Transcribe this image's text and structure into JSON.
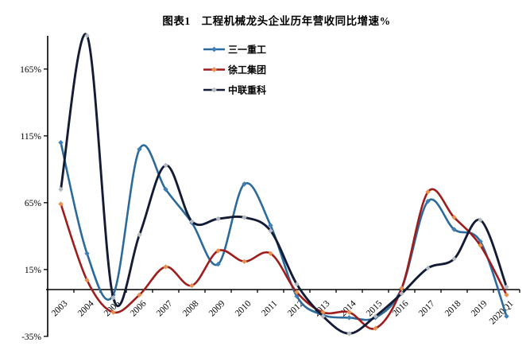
{
  "title": "图表1　工程机械龙头企业历年营收同比增速%",
  "chart_data": {
    "type": "line",
    "title": "图表1　工程机械龙头企业历年营收同比增速%",
    "subtitle": "",
    "xlabel": "",
    "ylabel": "",
    "grid": false,
    "smooth_lines": true,
    "legend_position": "top-center",
    "x_categories": [
      "2003",
      "2004",
      "2005",
      "2006",
      "2007",
      "2008",
      "2009",
      "2010",
      "2011",
      "2012",
      "2013",
      "2014",
      "2015",
      "2016",
      "2017",
      "2018",
      "2019",
      "2020Q1"
    ],
    "y_tick_labels": [
      "165%",
      "115%",
      "65%",
      "15%",
      "-35%"
    ],
    "y_tick_values": [
      165,
      115,
      65,
      15,
      -35
    ],
    "ylim": [
      -35,
      190
    ],
    "x_axis_at_value": 0,
    "axis_color": "#000000",
    "background_color": "#ffffff",
    "series": [
      {
        "name": "三一重工",
        "line_color": "#2b6a9b",
        "marker_color": "#3f7fb5",
        "marker": "diamond",
        "values": [
          110,
          27,
          -4,
          105,
          75,
          50,
          19,
          79,
          48,
          -5,
          -19,
          -21,
          -21,
          1,
          66,
          45,
          36,
          -20
        ]
      },
      {
        "name": "徐工集团",
        "line_color": "#9f1c1c",
        "marker_color": "#e8914f",
        "marker": "diamond",
        "values": [
          64,
          7,
          -17,
          -4,
          17,
          3,
          29,
          21,
          27,
          -2,
          -17,
          -17,
          -29,
          1,
          73,
          54,
          33,
          -4
        ]
      },
      {
        "name": "中联重科",
        "line_color": "#141b35",
        "marker_color": "#b4bac2",
        "marker": "diamond",
        "values": [
          75,
          190,
          -6,
          41,
          93,
          51,
          53,
          54,
          44,
          4,
          -20,
          -33,
          -20,
          -3,
          16,
          23,
          52,
          2
        ]
      }
    ]
  }
}
